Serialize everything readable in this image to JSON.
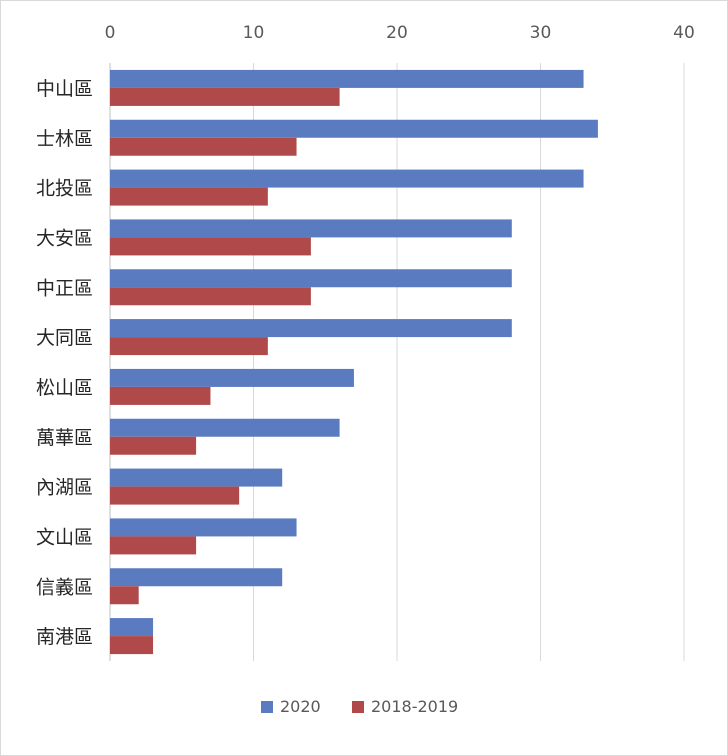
{
  "chart_data": {
    "type": "bar",
    "orientation": "horizontal",
    "categories": [
      "中山區",
      "士林區",
      "北投區",
      "大安區",
      "中正區",
      "大同區",
      "松山區",
      "萬華區",
      "內湖區",
      "文山區",
      "信義區",
      "南港區"
    ],
    "series": [
      {
        "name": "2020",
        "values": [
          33,
          34,
          33,
          28,
          28,
          28,
          17,
          16,
          12,
          13,
          12,
          3
        ],
        "color": "#5b7bc0"
      },
      {
        "name": "2018-2019",
        "values": [
          16,
          13,
          11,
          14,
          14,
          11,
          7,
          6,
          9,
          6,
          2,
          3
        ],
        "color": "#b04a4a"
      }
    ],
    "xlim": [
      0,
      40
    ],
    "xticks": [
      0,
      10,
      20,
      30,
      40
    ],
    "grid": true,
    "axis_position": "top",
    "legend_position": "bottom"
  }
}
